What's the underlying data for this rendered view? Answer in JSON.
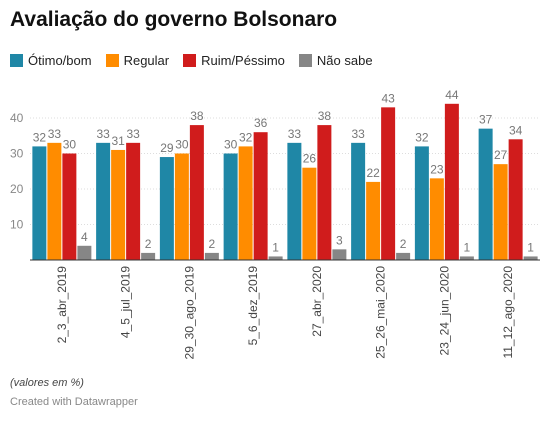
{
  "title": "Avaliação do governo Bolsonaro",
  "footnote": "(valores em %)",
  "credit": "Created with Datawrapper",
  "chart_data": {
    "type": "bar",
    "title": "Avaliação do governo Bolsonaro",
    "xlabel": "",
    "ylabel": "",
    "ylim": [
      0,
      50
    ],
    "yticks": [
      10,
      20,
      30,
      40
    ],
    "grid": true,
    "legend_position": "top-left",
    "categories": [
      "2_3_abr_2019",
      "4_5_jul_2019",
      "29_30_ago_2019",
      "5_6_dez_2019",
      "27_abr_2020",
      "25_26_mai_2020",
      "23_24_jun_2020",
      "11_12_ago_2020"
    ],
    "series": [
      {
        "name": "Ótimo/bom",
        "color": "#1f87a6",
        "values": [
          32,
          33,
          29,
          30,
          33,
          33,
          32,
          37
        ]
      },
      {
        "name": "Regular",
        "color": "#ff8c00",
        "values": [
          33,
          31,
          30,
          32,
          26,
          22,
          23,
          27
        ]
      },
      {
        "name": "Ruim/Péssimo",
        "color": "#d01c1c",
        "values": [
          30,
          33,
          38,
          36,
          38,
          43,
          44,
          34
        ]
      },
      {
        "name": "Não sabe",
        "color": "#868686",
        "values": [
          4,
          2,
          2,
          1,
          3,
          2,
          1,
          1
        ]
      }
    ]
  }
}
